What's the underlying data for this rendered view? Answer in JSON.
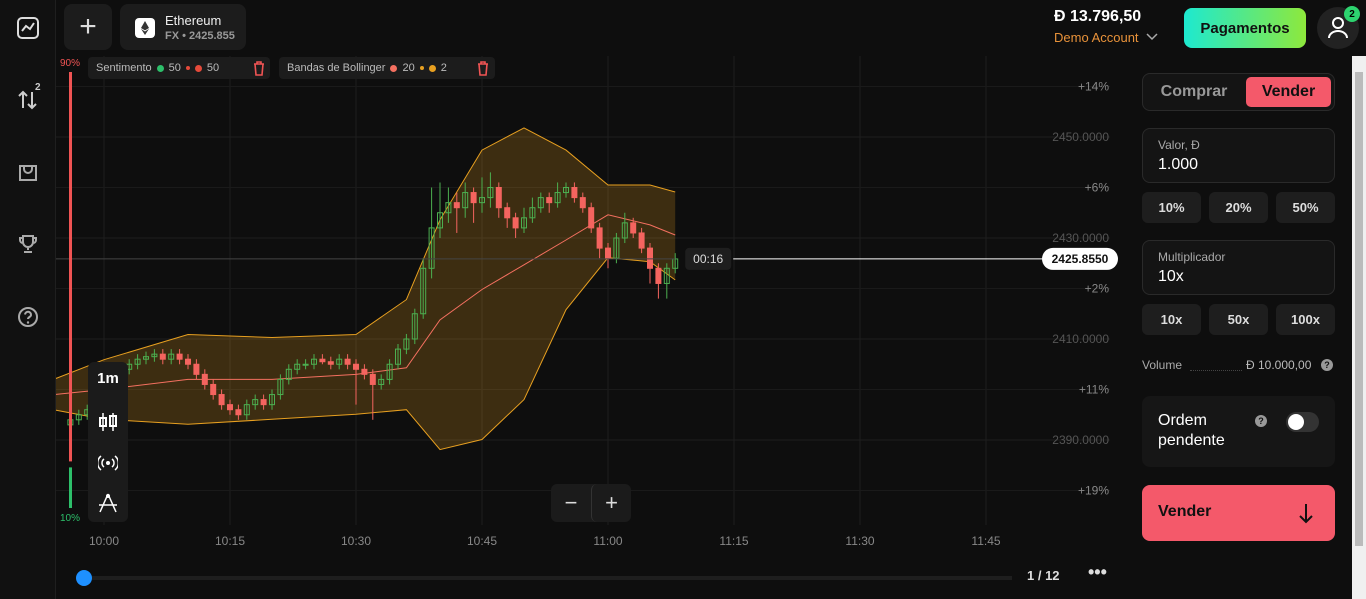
{
  "sidebar_badge": "2",
  "header": {
    "asset": "Ethereum",
    "asset_sub": "FX • 2425.855",
    "balance": "Đ 13.796,50",
    "account": "Demo Account",
    "payments": "Pagamentos",
    "notifications": "2"
  },
  "indicators": [
    {
      "name": "Sentimento",
      "params": [
        50,
        50
      ]
    },
    {
      "name": "Bandas de Bollinger",
      "params": [
        20,
        2
      ]
    }
  ],
  "sentiment": {
    "top": {
      "value": 90,
      "label": "90%"
    },
    "bottom": {
      "value": 10,
      "label": "10%"
    }
  },
  "toolbar": {
    "timeframe": "1m"
  },
  "pagination": "1 / 12",
  "chart": {
    "type": "candlestick",
    "up_color": "#4caf50",
    "down_color": "#f4645f",
    "band_color": "#e8a020",
    "price_ticks": [
      {
        "value": 2450,
        "label": "2450.0000"
      },
      {
        "value": 2430,
        "label": "2430.0000"
      },
      {
        "value": 2410,
        "label": "2410.0000"
      },
      {
        "value": 2390,
        "label": "2390.0000"
      }
    ],
    "pct_ticks": [
      {
        "value": 2460,
        "label": "+14%"
      },
      {
        "value": 2440,
        "label": "+6%"
      },
      {
        "value": 2420,
        "label": "+2%"
      },
      {
        "value": 2400,
        "label": "+11%"
      },
      {
        "value": 2380,
        "label": "+19%"
      }
    ],
    "xticks": [
      {
        "value": 600,
        "label": "10:00"
      },
      {
        "value": 615,
        "label": "10:15"
      },
      {
        "value": 630,
        "label": "10:30"
      },
      {
        "value": 645,
        "label": "10:45"
      },
      {
        "value": 660,
        "label": "11:00"
      },
      {
        "value": 675,
        "label": "11:15"
      },
      {
        "value": 690,
        "label": "11:30"
      },
      {
        "value": 705,
        "label": "11:45"
      }
    ],
    "candle_x": [
      596,
      597,
      598,
      599,
      600,
      601,
      602,
      603,
      604,
      605,
      606,
      607,
      608,
      609,
      610,
      611,
      612,
      613,
      614,
      615,
      616,
      617,
      618,
      619,
      620,
      621,
      622,
      623,
      624,
      625,
      626,
      627,
      628,
      629,
      630,
      631,
      632,
      633,
      634,
      635,
      636,
      637,
      638,
      639,
      640,
      641,
      642,
      643,
      644,
      645,
      646,
      647,
      648,
      649,
      650,
      651,
      652,
      653,
      654,
      655,
      656,
      657,
      658,
      659,
      660,
      661,
      662,
      663,
      664,
      665,
      666,
      667,
      668
    ],
    "candles": [
      [
        2393,
        2395,
        2392,
        2394
      ],
      [
        2394,
        2396,
        2393,
        2395
      ],
      [
        2395,
        2397,
        2394,
        2396
      ],
      [
        2396,
        2399,
        2395,
        2398
      ],
      [
        2398,
        2401,
        2397,
        2400
      ],
      [
        2400,
        2403,
        2399,
        2402
      ],
      [
        2402,
        2405,
        2401,
        2404
      ],
      [
        2404,
        2406,
        2403,
        2405
      ],
      [
        2405,
        2407,
        2404,
        2406
      ],
      [
        2406,
        2407.5,
        2405,
        2406.5
      ],
      [
        2406.5,
        2408,
        2405.5,
        2407
      ],
      [
        2407,
        2408,
        2405,
        2406
      ],
      [
        2406,
        2408,
        2405,
        2407
      ],
      [
        2407,
        2408,
        2405,
        2406
      ],
      [
        2406,
        2407,
        2404,
        2405
      ],
      [
        2405,
        2406,
        2402,
        2403
      ],
      [
        2403,
        2404,
        2400,
        2401
      ],
      [
        2401,
        2402,
        2398,
        2399
      ],
      [
        2399,
        2400,
        2396,
        2397
      ],
      [
        2397,
        2398,
        2395,
        2396
      ],
      [
        2396,
        2397,
        2394,
        2395
      ],
      [
        2395,
        2398,
        2394,
        2397
      ],
      [
        2397,
        2399,
        2396,
        2398
      ],
      [
        2398,
        2399,
        2396,
        2397
      ],
      [
        2397,
        2400,
        2396,
        2399
      ],
      [
        2399,
        2403,
        2398,
        2402
      ],
      [
        2402,
        2405,
        2401,
        2404
      ],
      [
        2404,
        2406,
        2403,
        2405
      ],
      [
        2405,
        2406,
        2404,
        2405
      ],
      [
        2405,
        2407,
        2404,
        2406
      ],
      [
        2406,
        2407,
        2405,
        2405.5
      ],
      [
        2405.5,
        2406.5,
        2404,
        2405
      ],
      [
        2405,
        2407,
        2404,
        2406
      ],
      [
        2406,
        2407,
        2404,
        2405
      ],
      [
        2405,
        2406,
        2397,
        2404
      ],
      [
        2404,
        2405,
        2402,
        2403
      ],
      [
        2403,
        2404,
        2394,
        2401
      ],
      [
        2401,
        2403,
        2400,
        2402
      ],
      [
        2402,
        2406,
        2401,
        2405
      ],
      [
        2405,
        2409,
        2404,
        2408
      ],
      [
        2408,
        2411,
        2407,
        2410
      ],
      [
        2410,
        2416,
        2409,
        2415
      ],
      [
        2415,
        2426,
        2414,
        2424
      ],
      [
        2424,
        2440,
        2422,
        2432
      ],
      [
        2432,
        2441,
        2430,
        2435
      ],
      [
        2435,
        2440,
        2433,
        2437
      ],
      [
        2437,
        2439,
        2431,
        2436
      ],
      [
        2436,
        2441,
        2434,
        2439
      ],
      [
        2439,
        2440,
        2433,
        2437
      ],
      [
        2437,
        2442,
        2435,
        2438
      ],
      [
        2438,
        2443,
        2436,
        2440
      ],
      [
        2440,
        2441,
        2434,
        2436
      ],
      [
        2436,
        2437,
        2432,
        2434
      ],
      [
        2434,
        2435,
        2430,
        2432
      ],
      [
        2432,
        2436,
        2431,
        2434
      ],
      [
        2434,
        2438,
        2433,
        2436
      ],
      [
        2436,
        2439,
        2435,
        2438
      ],
      [
        2438,
        2439,
        2435,
        2437
      ],
      [
        2437,
        2441,
        2436,
        2439
      ],
      [
        2439,
        2441,
        2438,
        2440
      ],
      [
        2440,
        2441,
        2437,
        2438
      ],
      [
        2438,
        2439,
        2435,
        2436
      ],
      [
        2436,
        2437,
        2431,
        2432
      ],
      [
        2432,
        2433,
        2426,
        2428
      ],
      [
        2428,
        2429,
        2424,
        2426
      ],
      [
        2426,
        2431,
        2425,
        2430
      ],
      [
        2430,
        2435,
        2429,
        2433
      ],
      [
        2433,
        2434,
        2430,
        2431
      ],
      [
        2431,
        2432,
        2427,
        2428
      ],
      [
        2428,
        2429,
        2421,
        2424
      ],
      [
        2424,
        2425,
        2418,
        2421
      ],
      [
        2421,
        2425,
        2418,
        2424
      ],
      [
        2424,
        2427,
        2423,
        2425.855
      ]
    ],
    "band_x": [
      594,
      600,
      610,
      620,
      630,
      636,
      640,
      645,
      650,
      655,
      660,
      665,
      668
    ],
    "band_upper": [
      2402.0,
      2405.9,
      2410.9,
      2410.3,
      2410.9,
      2417.8,
      2433.6,
      2447.4,
      2451.8,
      2447.4,
      2440.5,
      2440.5,
      2439.1
    ],
    "band_middle": [
      2399.0,
      2400.0,
      2402.0,
      2402.0,
      2403.0,
      2404.3,
      2413.8,
      2419.8,
      2424.7,
      2429.6,
      2434.6,
      2432.6,
      2430.6
    ],
    "band_lower": [
      2396.0,
      2394.1,
      2393.1,
      2394.1,
      2395.1,
      2396.0,
      2388.1,
      2390.1,
      2398.0,
      2415.8,
      2426.1,
      2425.3,
      2421.7
    ],
    "current_price": {
      "value": 2425.855,
      "label": "2425.8550"
    },
    "timer": "00:16"
  },
  "trade_panel": {
    "buy": "Comprar",
    "sell": "Vender",
    "amount_label": "Valor, Đ",
    "amount": "1.000",
    "amount_presets": [
      "10%",
      "20%",
      "50%"
    ],
    "multiplier_label": "Multiplicador",
    "multiplier": "10x",
    "multiplier_presets": [
      "10x",
      "50x",
      "100x"
    ],
    "volume_label": "Volume",
    "volume": "Đ 10.000,00",
    "pending_label": "Ordem pendente",
    "submit": "Vender"
  }
}
